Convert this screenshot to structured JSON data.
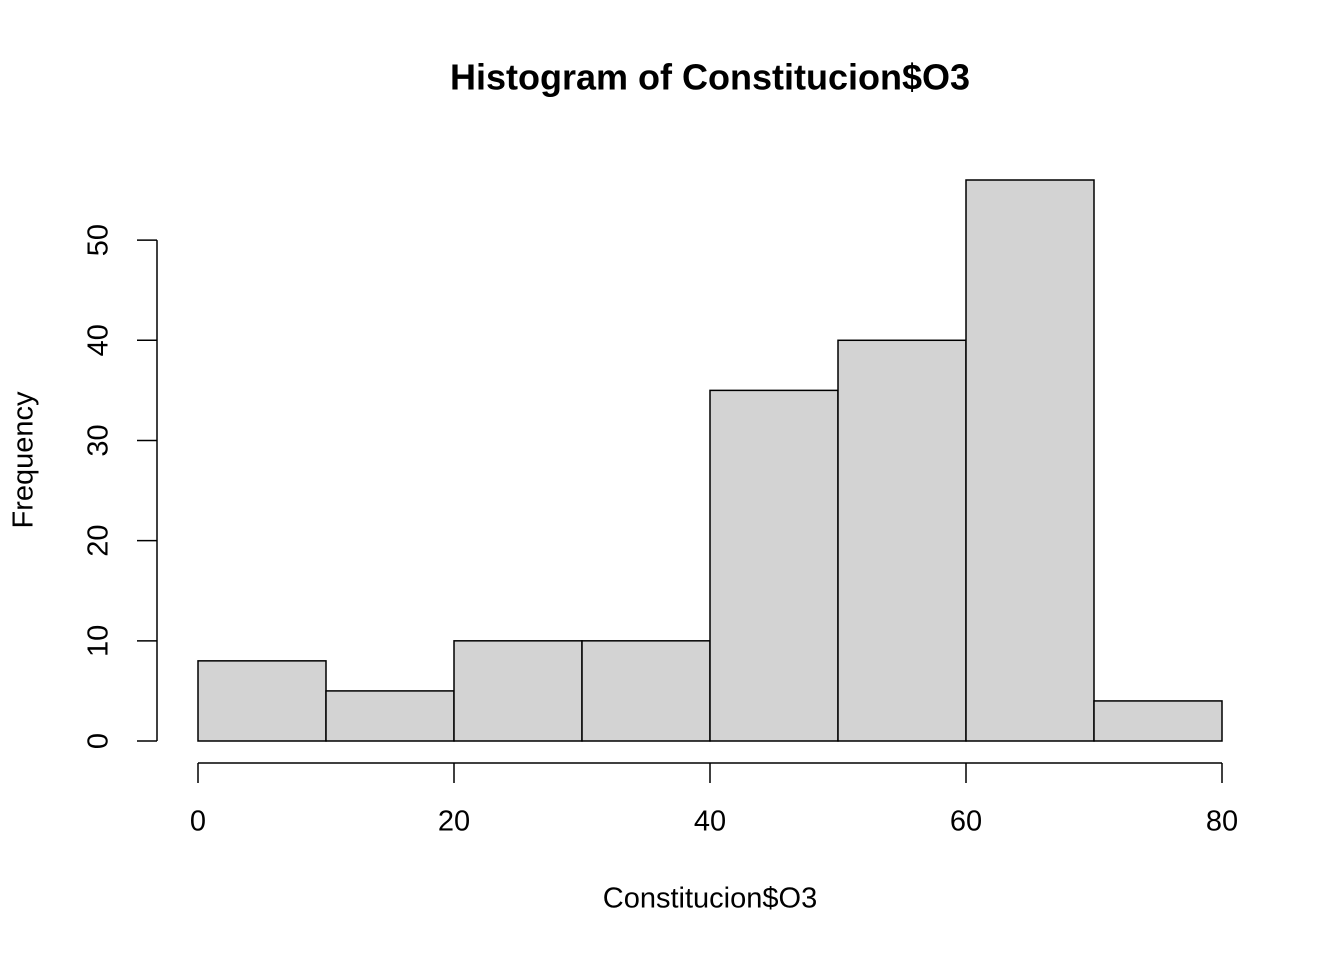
{
  "chart_data": {
    "type": "histogram",
    "title": "Histogram of Constitucion$O3",
    "x_label": "Constitucion$O3",
    "y_label": "Frequency",
    "bins": [
      0,
      10,
      20,
      30,
      40,
      50,
      60,
      70,
      80
    ],
    "counts": [
      8,
      5,
      10,
      10,
      35,
      40,
      56,
      4
    ],
    "color": "#d3d3d3",
    "edge_color": "#000000",
    "xlim": [
      0,
      80
    ],
    "xticks": [
      0,
      20,
      40,
      60,
      80
    ],
    "ylim": [
      0,
      56
    ],
    "yticks": [
      0,
      10,
      20,
      30,
      40,
      50
    ],
    "grid": false
  }
}
